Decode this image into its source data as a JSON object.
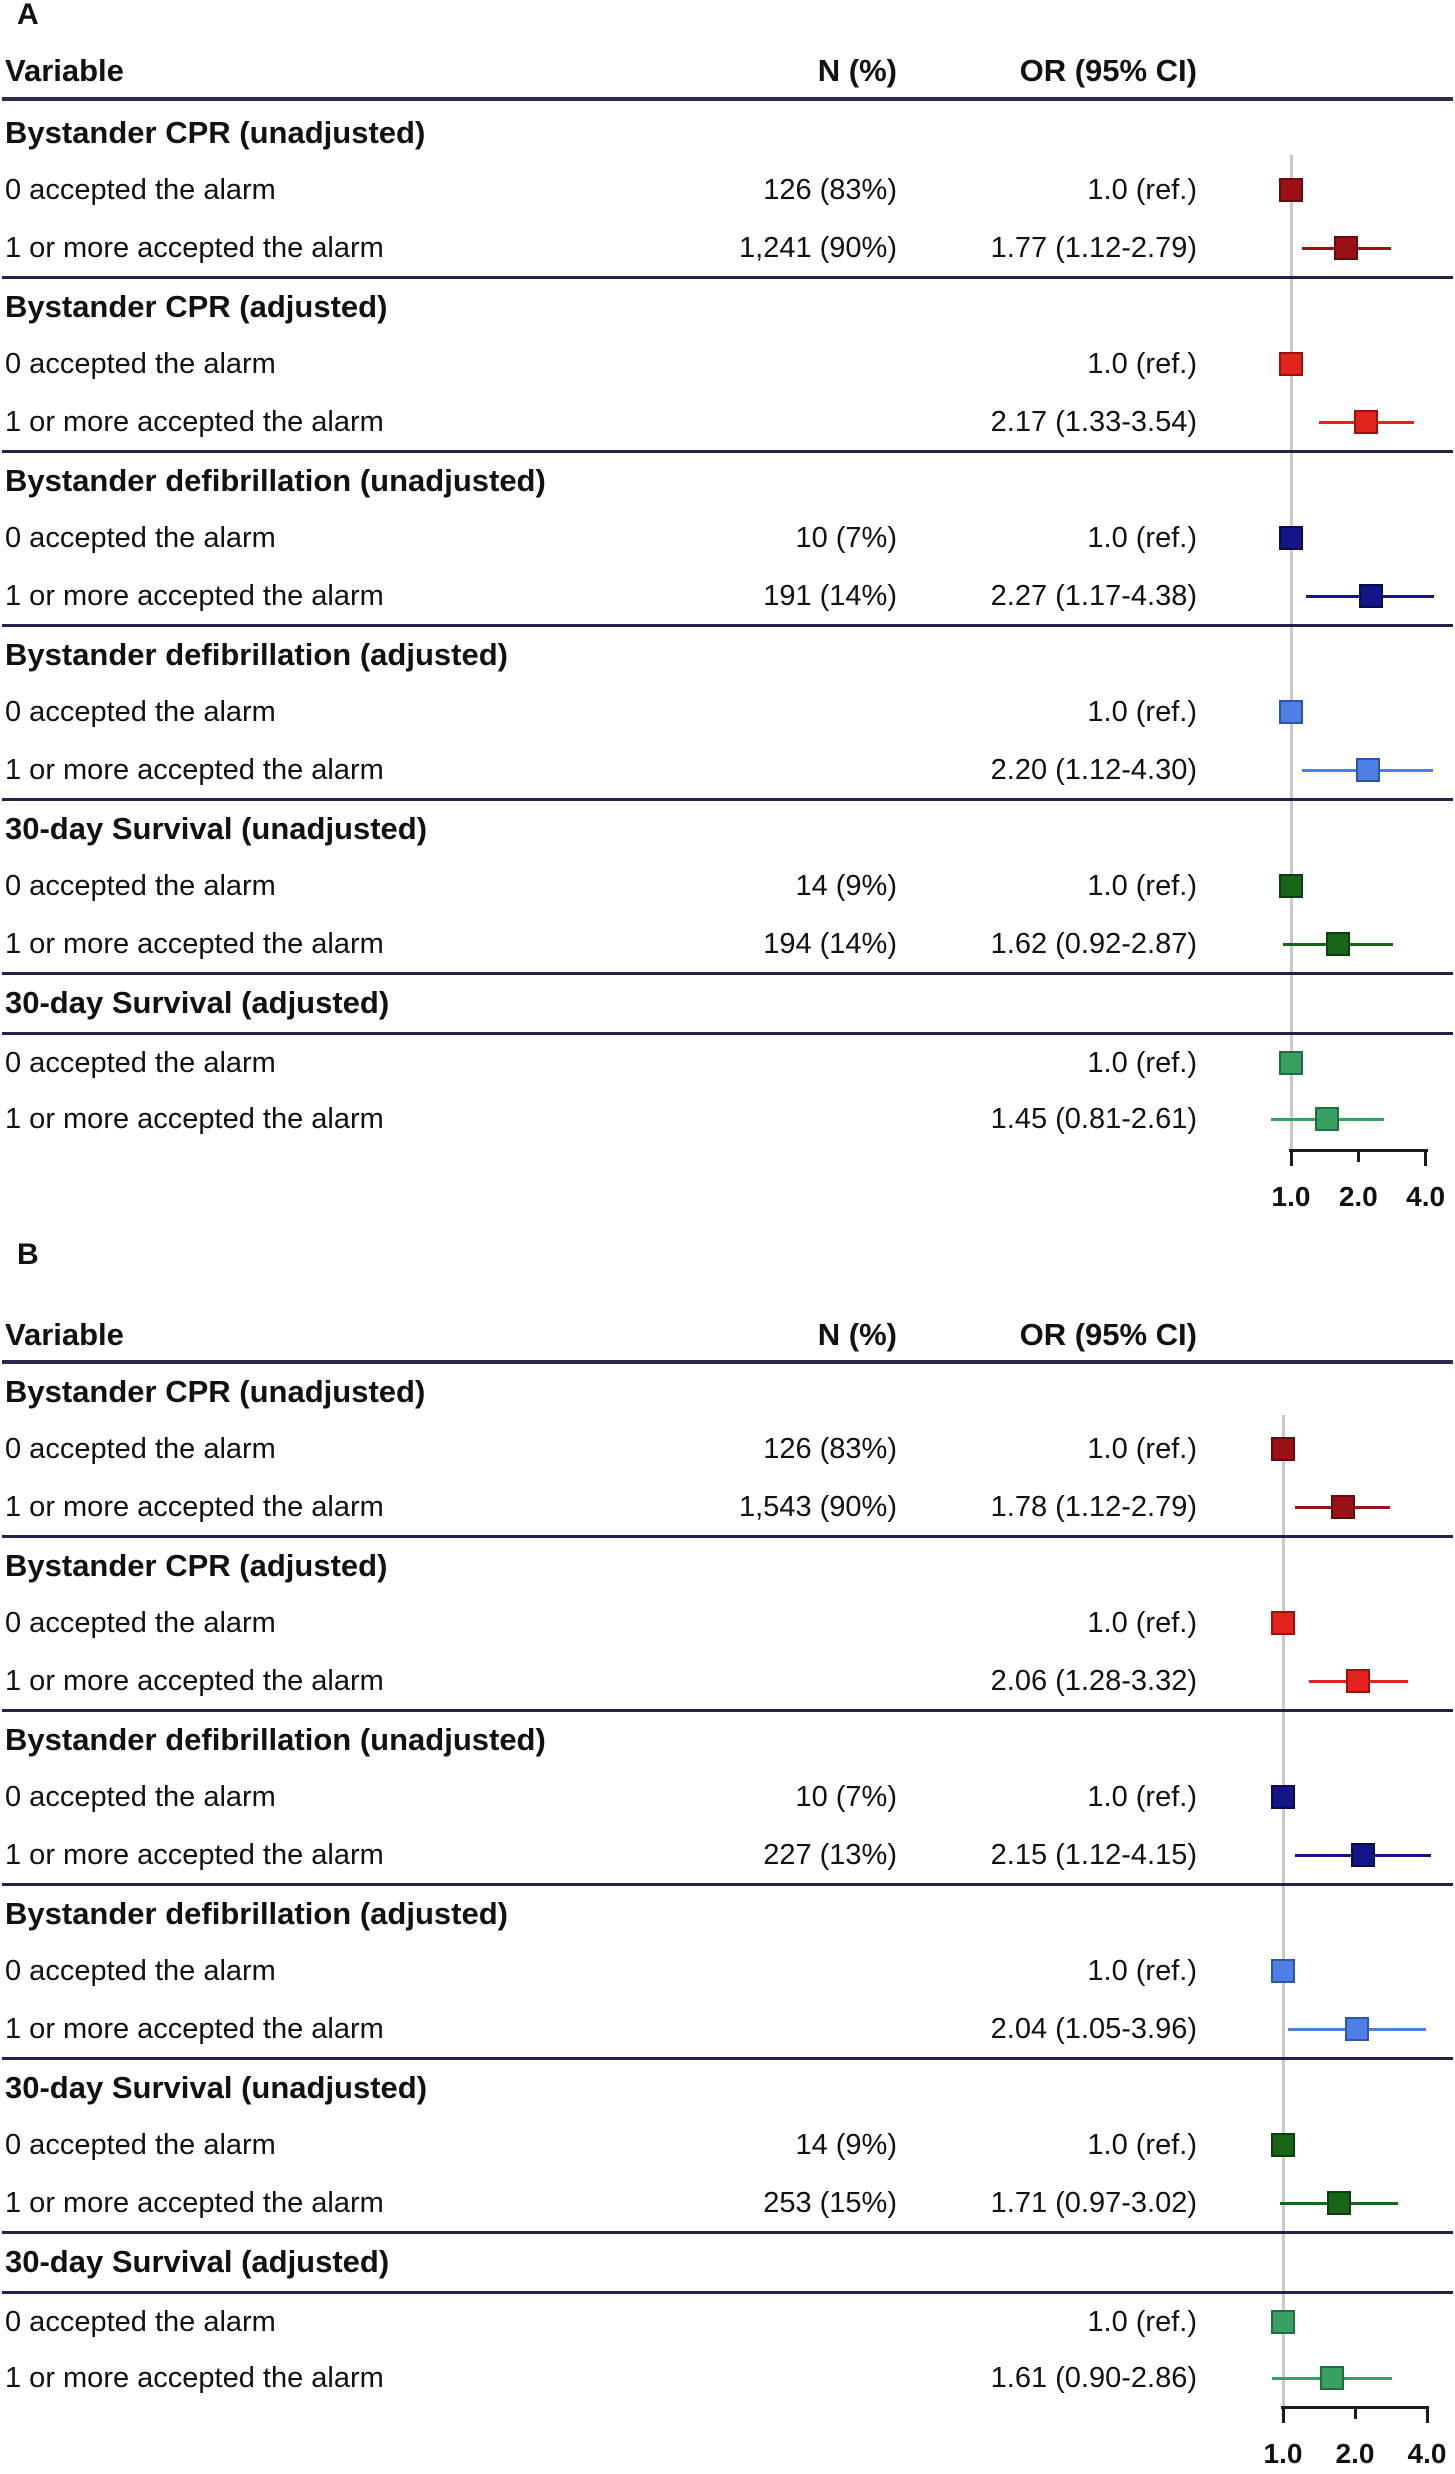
{
  "chart_data": [
    {
      "type": "forest",
      "panel_label": "A",
      "columns": {
        "variable": "Variable",
        "n": "N (%)",
        "or": "OR (95% CI)"
      },
      "x_axis": {
        "scale": "log2",
        "tick_values": [
          1.0,
          2.0,
          4.0
        ],
        "tick_labels": [
          "1.0",
          "2.0",
          "4.0"
        ],
        "reference_line": 1.0
      },
      "colors": {
        "reference_line": "#C9C9C9",
        "separator": "#22224C"
      },
      "sections": [
        {
          "title": "Bystander CPR (unadjusted)",
          "fill": "#9B1116",
          "border": "#640B0F",
          "rows": [
            {
              "label": "0 accepted the alarm",
              "n": "126 (83%)",
              "or_text": "1.0 (ref.)",
              "or": 1.0,
              "is_ref": true
            },
            {
              "label": "1 or more accepted the alarm",
              "n": "1,241 (90%)",
              "or_text": "1.77 (1.12-2.79)",
              "or": 1.77,
              "lo": 1.12,
              "hi": 2.79,
              "is_ref": false
            }
          ]
        },
        {
          "title": "Bystander CPR (adjusted)",
          "fill": "#E2231E",
          "border": "#9E100D",
          "rows": [
            {
              "label": "0 accepted the alarm",
              "n": "",
              "or_text": "1.0 (ref.)",
              "or": 1.0,
              "is_ref": true
            },
            {
              "label": "1 or more accepted the alarm",
              "n": "",
              "or_text": "2.17 (1.33-3.54)",
              "or": 2.17,
              "lo": 1.33,
              "hi": 3.54,
              "is_ref": false
            }
          ]
        },
        {
          "title": "Bystander defibrillation (unadjusted)",
          "fill": "#15158A",
          "border": "#0B0B4F",
          "rows": [
            {
              "label": "0 accepted the alarm",
              "n": "10 (7%)",
              "or_text": "1.0 (ref.)",
              "or": 1.0,
              "is_ref": true
            },
            {
              "label": "1 or more accepted the alarm",
              "n": "191 (14%)",
              "or_text": "2.27 (1.17-4.38)",
              "or": 2.27,
              "lo": 1.17,
              "hi": 4.38,
              "is_ref": false
            }
          ]
        },
        {
          "title": "Bystander defibrillation (adjusted)",
          "fill": "#4F7EE4",
          "border": "#2C55AE",
          "rows": [
            {
              "label": "0 accepted the alarm",
              "n": "",
              "or_text": "1.0 (ref.)",
              "or": 1.0,
              "is_ref": true
            },
            {
              "label": "1 or more accepted the alarm",
              "n": "",
              "or_text": "2.20 (1.12-4.30)",
              "or": 2.2,
              "lo": 1.12,
              "hi": 4.3,
              "is_ref": false
            }
          ]
        },
        {
          "title": "30-day Survival (unadjusted)",
          "fill": "#186418",
          "border": "#0C3E0E",
          "rows": [
            {
              "label": "0 accepted the alarm",
              "n": "14 (9%)",
              "or_text": "1.0 (ref.)",
              "or": 1.0,
              "is_ref": true
            },
            {
              "label": "1 or more accepted the alarm",
              "n": "194 (14%)",
              "or_text": "1.62 (0.92-2.87)",
              "or": 1.62,
              "lo": 0.92,
              "hi": 2.87,
              "is_ref": false
            }
          ]
        },
        {
          "title": "30-day Survival (adjusted)",
          "fill": "#38A060",
          "border": "#1F6E42",
          "rows": [
            {
              "label": "0 accepted the alarm",
              "n": "",
              "or_text": "1.0 (ref.)",
              "or": 1.0,
              "is_ref": true
            },
            {
              "label": "1 or more accepted the alarm",
              "n": "",
              "or_text": "1.45 (0.81-2.61)",
              "or": 1.45,
              "lo": 0.81,
              "hi": 2.61,
              "is_ref": false
            }
          ]
        }
      ]
    },
    {
      "type": "forest",
      "panel_label": "B",
      "columns": {
        "variable": "Variable",
        "n": "N (%)",
        "or": "OR (95% CI)"
      },
      "x_axis": {
        "scale": "log2",
        "tick_values": [
          1.0,
          2.0,
          4.0
        ],
        "tick_labels": [
          "1.0",
          "2.0",
          "4.0"
        ],
        "reference_line": 1.0
      },
      "colors": {
        "reference_line": "#C9C9C9",
        "separator": "#22224C"
      },
      "sections": [
        {
          "title": "Bystander CPR (unadjusted)",
          "fill": "#9B1116",
          "border": "#640B0F",
          "rows": [
            {
              "label": "0 accepted the alarm",
              "n": "126 (83%)",
              "or_text": "1.0 (ref.)",
              "or": 1.0,
              "is_ref": true
            },
            {
              "label": "1 or more accepted the alarm",
              "n": "1,543 (90%)",
              "or_text": "1.78 (1.12-2.79)",
              "or": 1.78,
              "lo": 1.12,
              "hi": 2.79,
              "is_ref": false
            }
          ]
        },
        {
          "title": "Bystander CPR (adjusted)",
          "fill": "#E2231E",
          "border": "#9E100D",
          "rows": [
            {
              "label": "0 accepted the alarm",
              "n": "",
              "or_text": "1.0 (ref.)",
              "or": 1.0,
              "is_ref": true
            },
            {
              "label": "1 or more accepted the alarm",
              "n": "",
              "or_text": "2.06 (1.28-3.32)",
              "or": 2.06,
              "lo": 1.28,
              "hi": 3.32,
              "is_ref": false
            }
          ]
        },
        {
          "title": "Bystander defibrillation (unadjusted)",
          "fill": "#15158A",
          "border": "#0B0B4F",
          "rows": [
            {
              "label": "0 accepted the alarm",
              "n": "10 (7%)",
              "or_text": "1.0 (ref.)",
              "or": 1.0,
              "is_ref": true
            },
            {
              "label": "1 or more accepted the alarm",
              "n": "227 (13%)",
              "or_text": "2.15 (1.12-4.15)",
              "or": 2.15,
              "lo": 1.12,
              "hi": 4.15,
              "is_ref": false
            }
          ]
        },
        {
          "title": "Bystander defibrillation (adjusted)",
          "fill": "#4F7EE4",
          "border": "#2C55AE",
          "rows": [
            {
              "label": "0 accepted the alarm",
              "n": "",
              "or_text": "1.0 (ref.)",
              "or": 1.0,
              "is_ref": true
            },
            {
              "label": "1 or more accepted the alarm",
              "n": "",
              "or_text": "2.04 (1.05-3.96)",
              "or": 2.04,
              "lo": 1.05,
              "hi": 3.96,
              "is_ref": false
            }
          ]
        },
        {
          "title": "30-day Survival (unadjusted)",
          "fill": "#186418",
          "border": "#0C3E0E",
          "rows": [
            {
              "label": "0 accepted the alarm",
              "n": "14 (9%)",
              "or_text": "1.0 (ref.)",
              "or": 1.0,
              "is_ref": true
            },
            {
              "label": "1 or more accepted the alarm",
              "n": "253 (15%)",
              "or_text": "1.71 (0.97-3.02)",
              "or": 1.71,
              "lo": 0.97,
              "hi": 3.02,
              "is_ref": false
            }
          ]
        },
        {
          "title": "30-day Survival (adjusted)",
          "fill": "#38A060",
          "border": "#1F6E42",
          "rows": [
            {
              "label": "0 accepted the alarm",
              "n": "",
              "or_text": "1.0 (ref.)",
              "or": 1.0,
              "is_ref": true
            },
            {
              "label": "1 or more accepted the alarm",
              "n": "",
              "or_text": "1.61 (0.90-2.86)",
              "or": 1.61,
              "lo": 0.9,
              "hi": 2.86,
              "is_ref": false
            }
          ]
        }
      ]
    }
  ]
}
